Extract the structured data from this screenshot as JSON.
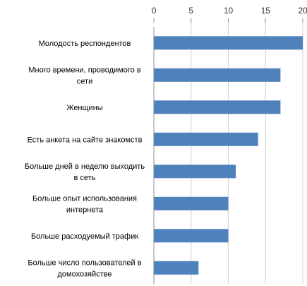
{
  "chart_data": {
    "type": "bar",
    "orientation": "horizontal",
    "title": "",
    "xlabel": "",
    "ylabel": "",
    "xlim": [
      0,
      20
    ],
    "x_ticks": [
      "0",
      "5",
      "10",
      "15",
      "20"
    ],
    "x_tick_values": [
      0,
      5,
      10,
      15,
      20
    ],
    "x_axis_position": "top",
    "grid": true,
    "legend": "none",
    "bar_color": "#4f81bd",
    "categories": [
      [
        "Молодость респондентов"
      ],
      [
        "Много времени, проводимого в",
        "сети"
      ],
      [
        "Женщины"
      ],
      [
        "Есть анкета на сайте знакомств"
      ],
      [
        "Больше дней в неделю выходить",
        "в сеть"
      ],
      [
        "Больше опыт использования",
        "интернета"
      ],
      [
        "Больше расходуемый трафик"
      ],
      [
        "Больше число пользователей в",
        "домохозяйстве"
      ]
    ],
    "values": [
      20,
      17,
      17,
      14,
      11,
      10,
      10,
      6
    ]
  }
}
